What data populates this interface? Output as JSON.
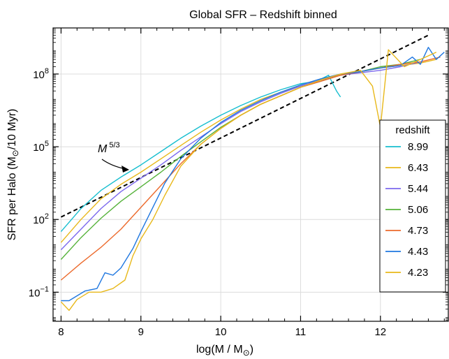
{
  "chart_data": {
    "type": "line",
    "title": "Global SFR – Redshift binned",
    "xlabel_main": "log(M / M",
    "xlabel_sub": "⊙",
    "xlabel_end": ")",
    "ylabel_main": "SFR per Halo (M",
    "ylabel_sub": "⊙",
    "ylabel_end": "/10 Myr)",
    "xlim": [
      7.9,
      12.85
    ],
    "ylim_log10": [
      -2.2,
      9.9
    ],
    "y_scale": "log",
    "x_ticks": [
      8,
      9,
      10,
      11,
      12
    ],
    "y_ticks": [
      {
        "exp": -1,
        "base": "10",
        "sup": "−1"
      },
      {
        "exp": 2,
        "base": "10",
        "sup": "2"
      },
      {
        "exp": 5,
        "base": "10",
        "sup": "5"
      },
      {
        "exp": 8,
        "base": "10",
        "sup": "8"
      }
    ],
    "grid": true,
    "legend_title": "redshift",
    "legend_position": "right",
    "reference_line": {
      "label_base": "M",
      "label_sup": "5/3",
      "x": [
        8.0,
        12.6
      ],
      "log10_y": [
        2.1,
        9.6
      ],
      "style": "dashed",
      "color": "#000000"
    },
    "series": [
      {
        "name": "8.99",
        "color": "#17becf",
        "x": [
          8.0,
          8.25,
          8.5,
          8.75,
          9.0,
          9.25,
          9.5,
          9.75,
          10.0,
          10.25,
          10.5,
          10.75,
          11.0,
          11.2,
          11.35,
          11.45,
          11.5
        ],
        "log10_y": [
          1.5,
          2.45,
          3.2,
          3.75,
          4.25,
          4.8,
          5.35,
          5.85,
          6.3,
          6.7,
          7.05,
          7.35,
          7.6,
          7.7,
          7.95,
          7.3,
          7.05
        ]
      },
      {
        "name": "6.43",
        "color": "#e8b81a",
        "x": [
          8.0,
          8.25,
          8.5,
          8.75,
          9.0,
          9.25,
          9.5,
          9.75,
          10.0,
          10.25,
          10.5,
          10.75,
          11.0,
          11.25,
          11.5,
          11.75,
          12.0,
          12.25,
          12.5,
          12.7
        ],
        "log10_y": [
          1.05,
          2.0,
          2.85,
          3.45,
          3.95,
          4.5,
          5.05,
          5.6,
          6.1,
          6.55,
          6.95,
          7.25,
          7.5,
          7.75,
          7.95,
          8.1,
          8.25,
          8.35,
          8.45,
          8.6
        ]
      },
      {
        "name": "5.44",
        "color": "#7b68ee",
        "x": [
          8.0,
          8.25,
          8.5,
          8.75,
          9.0,
          9.25,
          9.5,
          9.75,
          10.0,
          10.25,
          10.5,
          10.75,
          11.0,
          11.25,
          11.5,
          11.75,
          12.0,
          12.25,
          12.5
        ],
        "log10_y": [
          0.75,
          1.6,
          2.45,
          3.15,
          3.7,
          4.25,
          4.85,
          5.4,
          5.95,
          6.45,
          6.85,
          7.2,
          7.5,
          7.75,
          7.95,
          8.05,
          8.15,
          8.3,
          8.5
        ]
      },
      {
        "name": "5.06",
        "color": "#55b23a",
        "x": [
          8.0,
          8.25,
          8.5,
          8.75,
          9.0,
          9.25,
          9.5,
          9.75,
          10.0,
          10.25,
          10.5,
          10.75,
          11.0,
          11.25,
          11.5,
          11.75,
          12.0,
          12.25,
          12.5
        ],
        "log10_y": [
          0.35,
          1.25,
          2.05,
          2.75,
          3.35,
          3.95,
          4.6,
          5.2,
          5.8,
          6.3,
          6.75,
          7.1,
          7.45,
          7.7,
          7.95,
          8.1,
          8.3,
          8.4,
          8.6
        ]
      },
      {
        "name": "4.73",
        "color": "#ec6a2c",
        "x": [
          8.0,
          8.25,
          8.5,
          8.75,
          9.0,
          9.25,
          9.5,
          9.75,
          10.0,
          10.25,
          10.5,
          10.75,
          11.0,
          11.25,
          11.5,
          11.75,
          12.0,
          12.25,
          12.5,
          12.75
        ],
        "log10_y": [
          -0.5,
          0.2,
          0.85,
          1.6,
          2.5,
          3.4,
          4.3,
          5.1,
          5.75,
          6.3,
          6.75,
          7.1,
          7.45,
          7.7,
          7.95,
          8.1,
          8.25,
          8.4,
          8.5,
          8.7
        ]
      },
      {
        "name": "4.43",
        "color": "#1f77e0",
        "x": [
          8.0,
          8.1,
          8.3,
          8.45,
          8.55,
          8.65,
          8.75,
          8.9,
          9.0,
          9.15,
          9.3,
          9.5,
          9.75,
          10.0,
          10.25,
          10.5,
          10.75,
          11.0,
          11.25,
          11.5,
          11.75,
          12.0,
          12.25,
          12.4,
          12.5,
          12.6,
          12.7,
          12.8
        ],
        "log10_y": [
          -1.35,
          -1.35,
          -0.95,
          -0.85,
          -0.2,
          -0.3,
          0.0,
          0.8,
          1.5,
          2.5,
          3.5,
          4.5,
          5.35,
          6.0,
          6.5,
          6.9,
          7.25,
          7.55,
          7.8,
          8.0,
          8.1,
          8.25,
          8.35,
          8.7,
          8.4,
          9.1,
          8.6,
          8.9
        ]
      },
      {
        "name": "4.23",
        "color": "#e8b81a",
        "x": [
          8.0,
          8.1,
          8.2,
          8.35,
          8.5,
          8.65,
          8.8,
          8.9,
          9.0,
          9.15,
          9.3,
          9.5,
          9.75,
          10.0,
          10.25,
          10.5,
          10.75,
          11.0,
          11.25,
          11.5,
          11.75,
          11.9,
          12.0,
          12.1,
          12.3,
          12.5,
          12.7
        ],
        "log10_y": [
          -1.4,
          -1.75,
          -1.3,
          -1.0,
          -1.0,
          -0.85,
          -0.5,
          0.5,
          1.2,
          2.0,
          3.0,
          4.2,
          5.1,
          5.75,
          6.3,
          6.75,
          7.1,
          7.45,
          7.75,
          8.0,
          8.15,
          7.5,
          5.8,
          9.0,
          8.3,
          8.6,
          8.9
        ]
      }
    ]
  }
}
